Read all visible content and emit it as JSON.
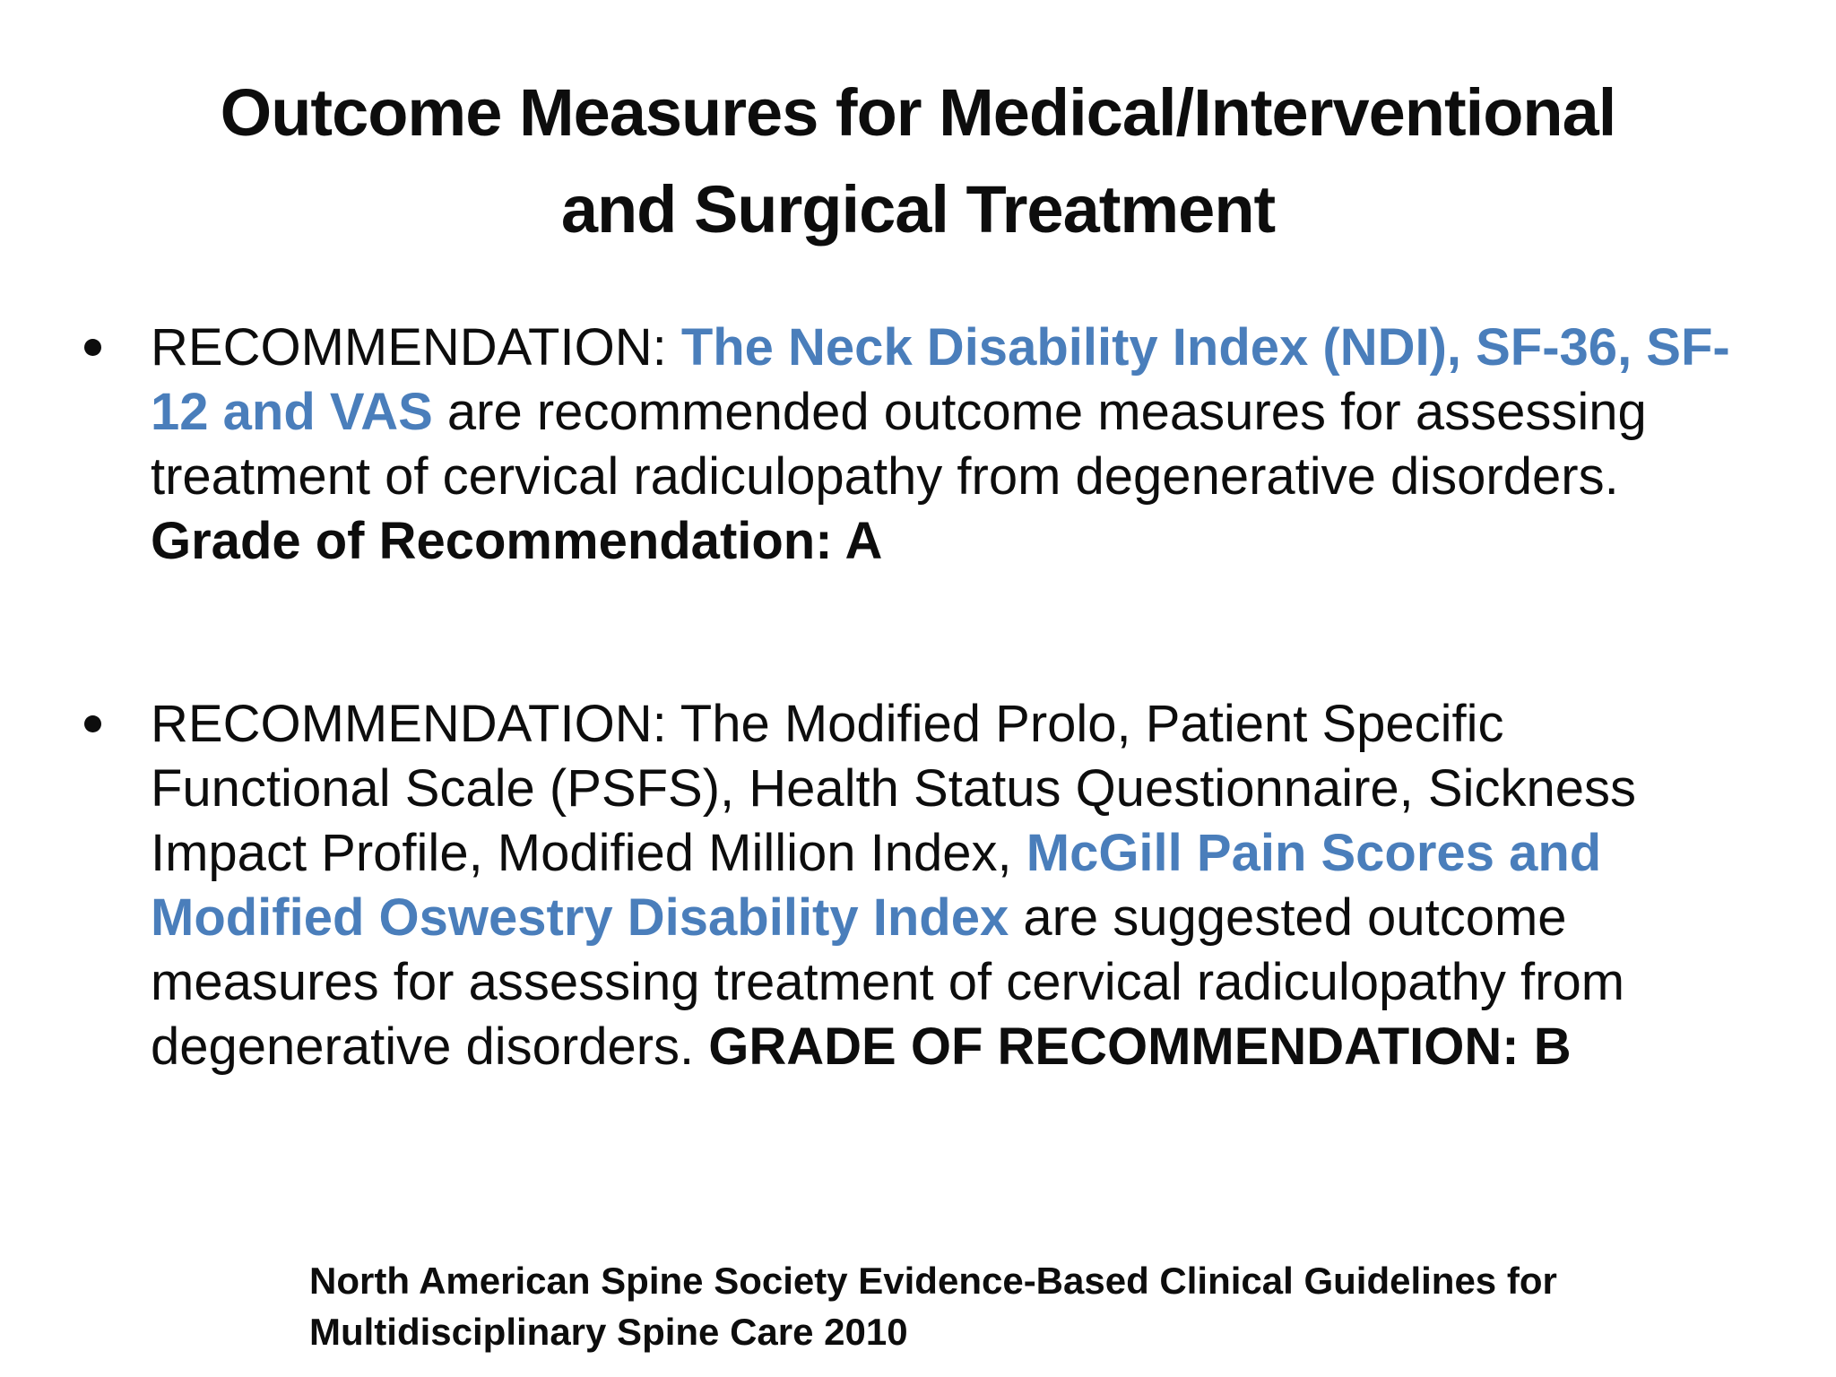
{
  "slide": {
    "title": {
      "line1": "Outcome Measures for Medical/Interventional",
      "line2": "and Surgical Treatment"
    },
    "bullets": [
      {
        "runs": [
          {
            "text": "RECOMMENDATION: ",
            "style": "normal"
          },
          {
            "text": "The Neck Disability Index (NDI), SF-36, SF-12 and VAS",
            "style": "blue-bold"
          },
          {
            "text": " are recommended outcome measures for assessing treatment of cervical radiculopathy from degenerative disorders. ",
            "style": "normal"
          },
          {
            "text": "Grade of Recommendation: A",
            "style": "bold"
          }
        ]
      },
      {
        "runs": [
          {
            "text": "RECOMMENDATION: The Modified Prolo, Patient Specific Functional Scale (PSFS), Health Status Questionnaire, Sickness Impact Profile, Modified Million Index, ",
            "style": "normal"
          },
          {
            "text": "McGill Pain Scores and Modified Oswestry Disability Index",
            "style": "blue-bold"
          },
          {
            "text": " are suggested outcome measures for assessing treatment of cervical radiculopathy from degenerative disorders. ",
            "style": "normal"
          },
          {
            "text": "GRADE OF RECOMMENDATION: B",
            "style": "bold"
          }
        ]
      }
    ],
    "footer": {
      "line1": "North American Spine Society Evidence-Based Clinical Guidelines for",
      "line2": "Multidisciplinary Spine Care 2010"
    },
    "colors": {
      "accent_blue": "#4a7ebb",
      "text": "#0d0d0d",
      "background": "#ffffff"
    }
  }
}
